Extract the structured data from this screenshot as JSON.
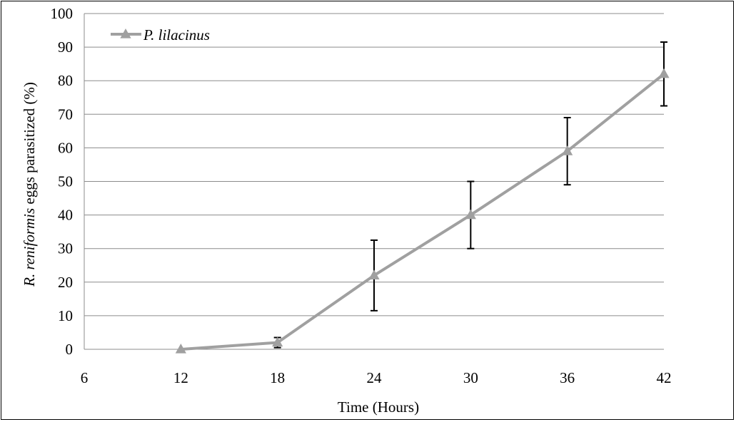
{
  "chart_data": {
    "type": "line",
    "xlabel": "Time (Hours)",
    "ylabel_parts": [
      {
        "text": "R. reniformis",
        "italic": true
      },
      {
        "text": " eggs parasitized (%)",
        "italic": false
      }
    ],
    "xlim": [
      6,
      42
    ],
    "ylim": [
      0,
      100
    ],
    "xticks": [
      6,
      12,
      18,
      24,
      30,
      36,
      42
    ],
    "yticks": [
      0,
      10,
      20,
      30,
      40,
      50,
      60,
      70,
      80,
      90,
      100
    ],
    "grid": "horizontal",
    "legend_position": "top-left",
    "series": [
      {
        "name": "P. lilacinus",
        "color": "#a0a0a0",
        "marker": "triangle",
        "x": [
          12,
          18,
          24,
          30,
          36,
          42
        ],
        "y": [
          0,
          2,
          22,
          40,
          59,
          82
        ],
        "error": [
          0,
          1.5,
          10.5,
          10,
          10,
          9.5
        ]
      }
    ]
  }
}
